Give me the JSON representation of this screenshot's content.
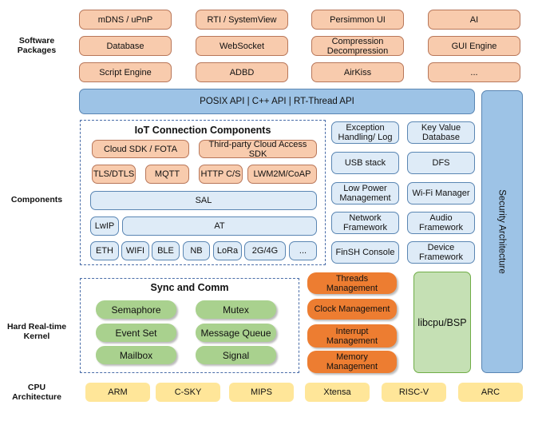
{
  "layers": {
    "software": "Software\nPackages",
    "components": "Components",
    "kernel": "Hard Real-time\nKernel",
    "cpu": "CPU\nArchitecture"
  },
  "software_packages": [
    "mDNS / uPnP",
    "RTI / SystemView",
    "Persimmon UI",
    "AI",
    "Database",
    "WebSocket",
    "Compression\nDecompression",
    "GUI Engine",
    "Script Engine",
    "ADBD",
    "AirKiss",
    "..."
  ],
  "api_bar": "POSIX API  |  C++ API  |  RT-Thread API",
  "security": "Security Architecture",
  "iot": {
    "title": "IoT Connection Components",
    "items": [
      "Cloud SDK / FOTA",
      "Third-party Cloud Access SDK",
      "TLS/DTLS",
      "MQTT",
      "HTTP C/S",
      "LWM2M/CoAP",
      "SAL",
      "LwIP",
      "AT",
      "ETH",
      "WIFI",
      "BLE",
      "NB",
      "LoRa",
      "2G/4G",
      "..."
    ]
  },
  "components": [
    "Exception\nHandling/ Log",
    "Key Value\nDatabase",
    "USB stack",
    "DFS",
    "Low Power\nManagement",
    "Wi-Fi Manager",
    "Network\nFramework",
    "Audio\nFramework",
    "FinSH Console",
    "Device\nFramework"
  ],
  "sync": {
    "title": "Sync and Comm",
    "items": [
      "Semaphore",
      "Mutex",
      "Event Set",
      "Message Queue",
      "Mailbox",
      "Signal"
    ]
  },
  "kernel": [
    "Threads\nManagement",
    "Clock Management",
    "Interrupt\nManagement",
    "Memory\nManagement"
  ],
  "libcpu": "libcpu/BSP",
  "cpu": [
    "ARM",
    "C-SKY",
    "MIPS",
    "Xtensa",
    "RISC-V",
    "ARC"
  ],
  "colors": {
    "package": "#f8cbad",
    "component": "#deebf7",
    "api": "#9dc3e6",
    "kernel": "#ed7d31",
    "sync": "#a9d18e",
    "libcpu": "#c5e0b4",
    "cpu": "#ffe699"
  }
}
